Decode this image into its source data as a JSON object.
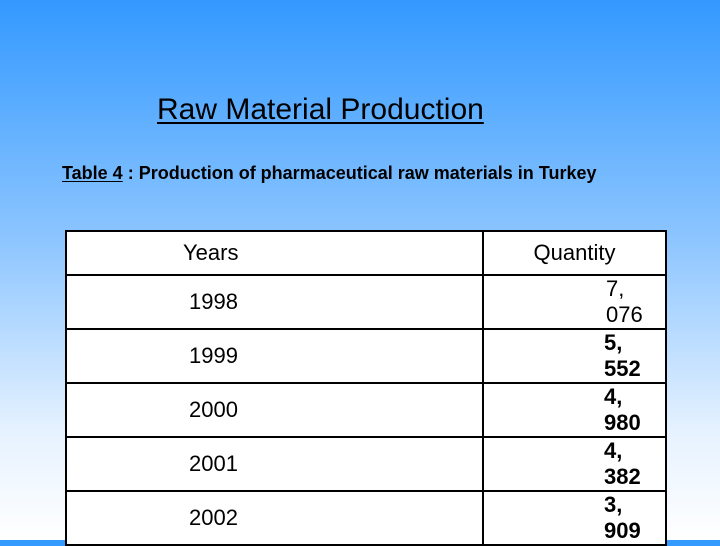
{
  "title": "Raw Material Production",
  "caption": {
    "table_ref": "Table 4",
    "text": " : Production of pharmaceutical raw materials in Turkey"
  },
  "table": {
    "headers": [
      "Years",
      "Quantity"
    ],
    "rows": [
      {
        "year": "1998",
        "quantity": "7, 076"
      },
      {
        "year": "1999",
        "quantity": "5, 552"
      },
      {
        "year": "2000",
        "quantity": "4, 980"
      },
      {
        "year": "2001",
        "quantity": "4, 382"
      },
      {
        "year": "2002",
        "quantity": "3, 909"
      }
    ]
  }
}
